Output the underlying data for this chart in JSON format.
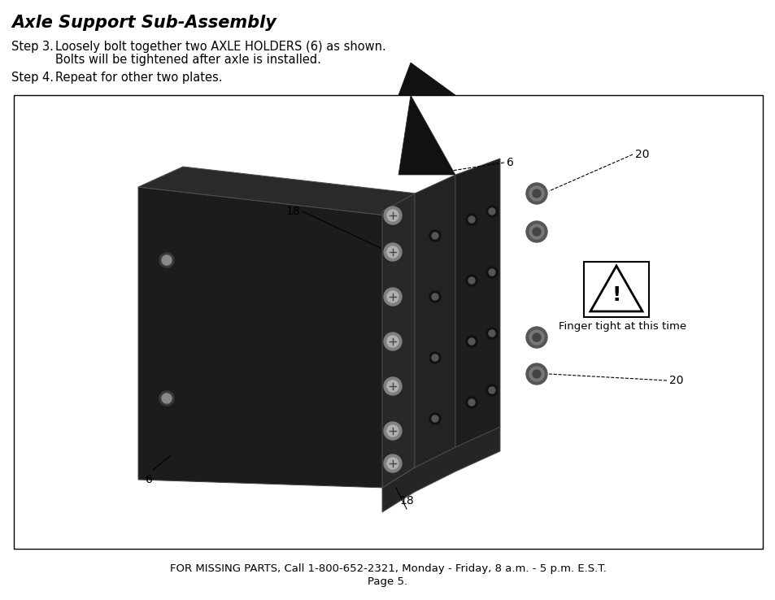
{
  "title": "Axle Support Sub-Assembly",
  "step3_label": "Step 3.",
  "step3_text_line1": "Loosely bolt together two AXLE HOLDERS (6) as shown.",
  "step3_text_line2": "Bolts will be tightened after axle is installed.",
  "step4_label": "Step 4.",
  "step4_text": "Repeat for other two plates.",
  "footer_line1": "FOR MISSING PARTS, Call 1-800-652-2321, Monday - Friday, 8 a.m. - 5 p.m. E.S.T.",
  "footer_line2": "Page 5.",
  "bg_color": "#ffffff",
  "text_color": "#000000",
  "warning_text": "Finger tight at this time"
}
